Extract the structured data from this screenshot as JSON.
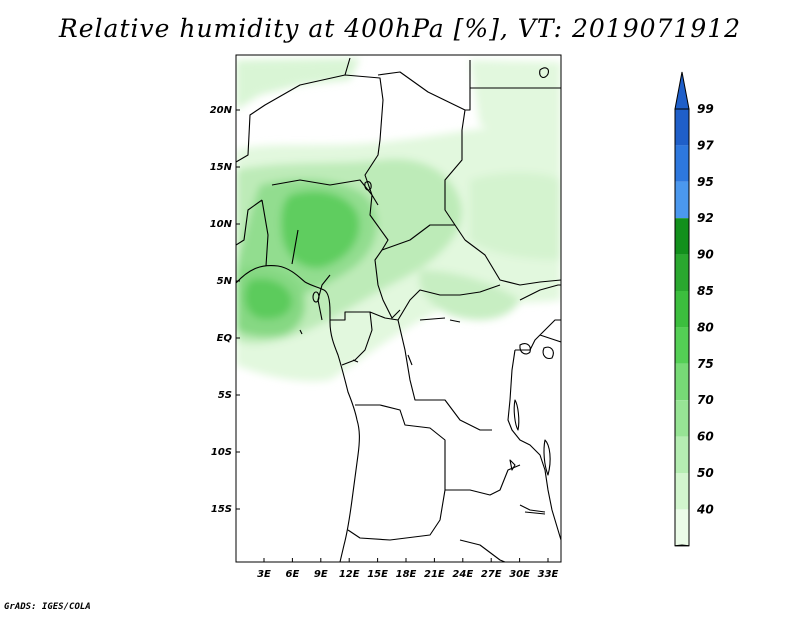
{
  "title": "Relative humidity at 400hPa [%], VT: 2019071912",
  "credit": "GrADS: IGES/COLA",
  "map": {
    "lat_labels": [
      "20N",
      "15N",
      "10N",
      "5N",
      "EQ",
      "5S",
      "10S",
      "15S"
    ],
    "lon_labels": [
      "3E",
      "6E",
      "9E",
      "12E",
      "15E",
      "18E",
      "21E",
      "24E",
      "27E",
      "30E",
      "33E"
    ]
  },
  "colorbar": {
    "levels": [
      "99",
      "97",
      "95",
      "92",
      "90",
      "85",
      "80",
      "75",
      "70",
      "60",
      "50",
      "40"
    ],
    "colors": [
      "#1f5fc9",
      "#2e78de",
      "#4b98ee",
      "#12901c",
      "#2aa82f",
      "#3cbe3e",
      "#54cf55",
      "#77da76",
      "#97e495",
      "#b5edb2",
      "#d2f5ce",
      "#ebfbe8"
    ],
    "overflow_color": "#1f5fc9"
  }
}
